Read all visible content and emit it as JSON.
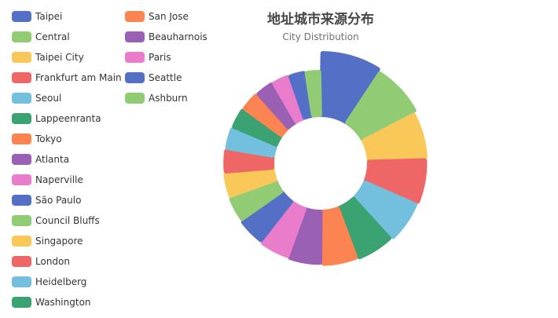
{
  "chart_data": {
    "type": "pie",
    "variant": "donut-rose",
    "title": "地址城市来源分布",
    "subtitle": "City Distribution",
    "legend": "left",
    "slices": [
      {
        "name": "Taipei",
        "value": 100,
        "color": "#5470c6"
      },
      {
        "name": "Central",
        "value": 90,
        "color": "#91cc75"
      },
      {
        "name": "Taipei City",
        "value": 80,
        "color": "#fac858"
      },
      {
        "name": "Frankfurt am Main",
        "value": 78,
        "color": "#ee6666"
      },
      {
        "name": "Seoul",
        "value": 74,
        "color": "#73c0de"
      },
      {
        "name": "Lappeenranta",
        "value": 68,
        "color": "#3ba272"
      },
      {
        "name": "Tokyo",
        "value": 64,
        "color": "#fc8452"
      },
      {
        "name": "Atlanta",
        "value": 60,
        "color": "#9a60b4"
      },
      {
        "name": "Naperville",
        "value": 56,
        "color": "#ea7ccc"
      },
      {
        "name": "São Paulo",
        "value": 52,
        "color": "#5470c6"
      },
      {
        "name": "Council Bluffs",
        "value": 48,
        "color": "#91cc75"
      },
      {
        "name": "Singapore",
        "value": 46,
        "color": "#fac858"
      },
      {
        "name": "London",
        "value": 44,
        "color": "#ee6666"
      },
      {
        "name": "Heidelberg",
        "value": 42,
        "color": "#73c0de"
      },
      {
        "name": "Washington",
        "value": 40,
        "color": "#3ba272"
      },
      {
        "name": "San Jose",
        "value": 38,
        "color": "#fc8452"
      },
      {
        "name": "Beauharnois",
        "value": 36,
        "color": "#9a60b4"
      },
      {
        "name": "Paris",
        "value": 34,
        "color": "#ea7ccc"
      },
      {
        "name": "Seattle",
        "value": 32,
        "color": "#5470c6"
      },
      {
        "name": "Ashburn",
        "value": 30,
        "color": "#91cc75"
      }
    ]
  }
}
